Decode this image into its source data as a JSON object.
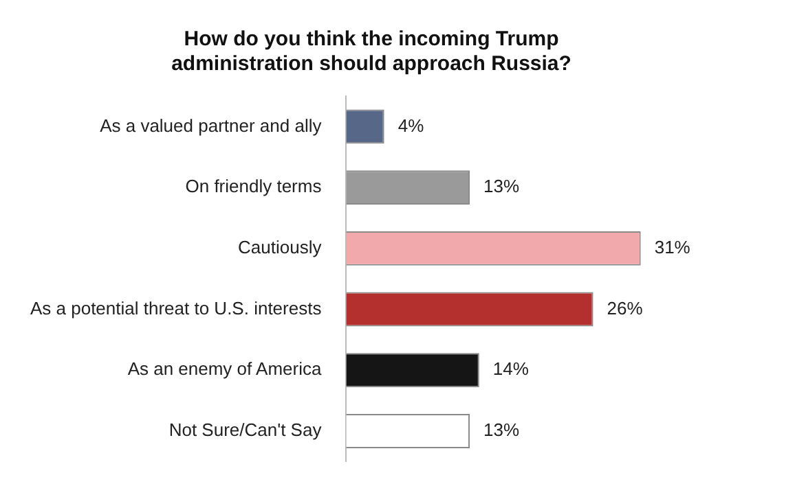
{
  "chart_data": {
    "type": "bar",
    "orientation": "horizontal",
    "title": "How do you think the incoming Trump administration should approach Russia?",
    "categories": [
      "As a valued partner and ally",
      "On friendly terms",
      "Cautiously",
      "As a potential threat to U.S. interests",
      "As an enemy of America",
      "Not Sure/Can't Say"
    ],
    "values": [
      4,
      13,
      31,
      26,
      14,
      13
    ],
    "value_labels": [
      "4%",
      "13%",
      "31%",
      "26%",
      "14%",
      "13%"
    ],
    "colors": [
      "#566787",
      "#9a9a9a",
      "#f2a9ab",
      "#b3302f",
      "#151515",
      "#ffffff"
    ],
    "grid": false,
    "legend": false
  }
}
